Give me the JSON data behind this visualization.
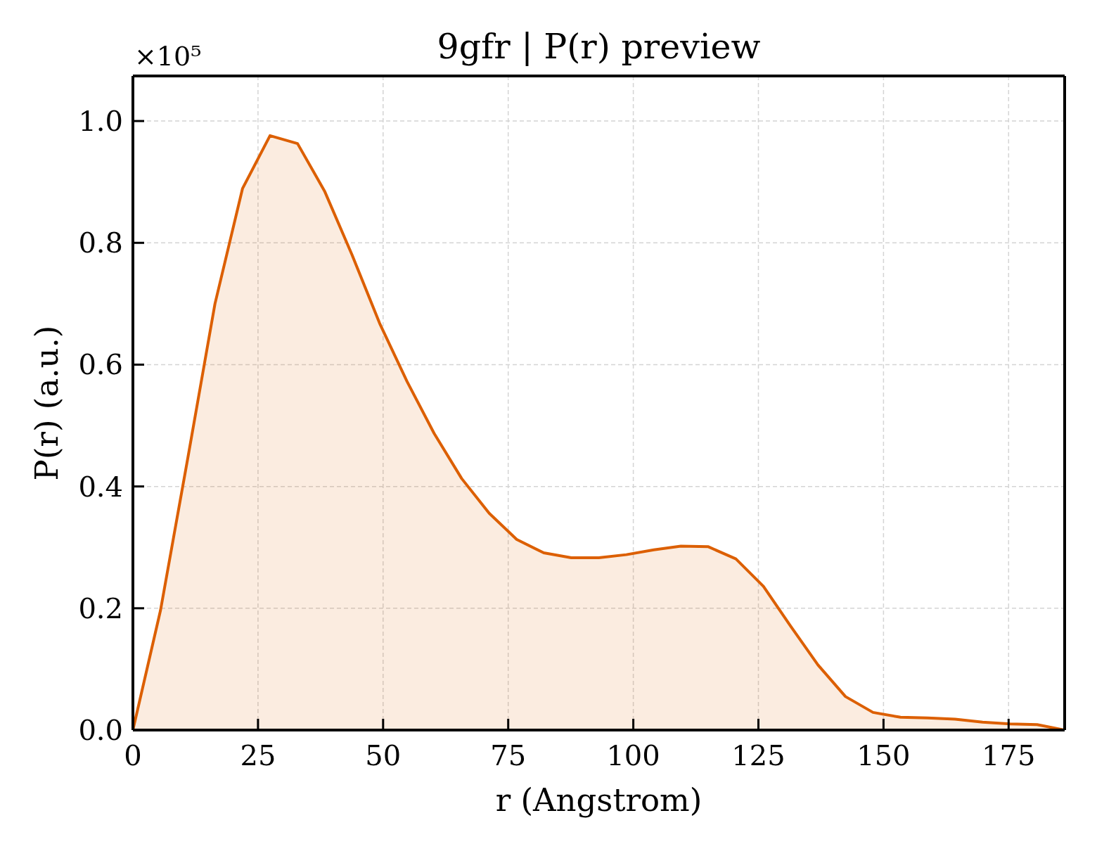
{
  "chart_data": {
    "type": "area",
    "title": "9gfr | P(r) preview",
    "xlabel": "r (Angstrom)",
    "ylabel": "P(r) (a.u.)",
    "annotations": [
      "×10⁵"
    ],
    "x": [
      0,
      5.5,
      11.0,
      16.4,
      21.9,
      27.4,
      32.9,
      38.3,
      43.8,
      49.3,
      54.8,
      60.2,
      65.7,
      71.2,
      76.7,
      82.1,
      87.6,
      93.1,
      98.6,
      104.1,
      109.5,
      115.0,
      120.5,
      126.0,
      131.4,
      136.9,
      142.4,
      147.9,
      153.4,
      158.8,
      164.3,
      169.8,
      175.3,
      180.7,
      186.2
    ],
    "series": [
      {
        "color": "#dc5f00",
        "values": [
          0,
          0.196,
          0.448,
          0.7,
          0.889,
          0.976,
          0.963,
          0.885,
          0.78,
          0.668,
          0.572,
          0.487,
          0.413,
          0.356,
          0.313,
          0.291,
          0.283,
          0.283,
          0.288,
          0.296,
          0.302,
          0.301,
          0.281,
          0.236,
          0.171,
          0.107,
          0.055,
          0.029,
          0.021,
          0.02,
          0.018,
          0.013,
          0.01,
          0.009,
          0
        ]
      }
    ],
    "xlim": [
      0,
      186.2
    ],
    "xticks": [
      0,
      25,
      50,
      75,
      100,
      125,
      150,
      175
    ],
    "ylim": [
      0,
      1.074
    ],
    "yticks": [
      {
        "value": 0,
        "label": "0.0"
      },
      0.2,
      0.4,
      0.6,
      0.8,
      {
        "value": 1,
        "label": "1.0"
      }
    ],
    "grid": true
  }
}
